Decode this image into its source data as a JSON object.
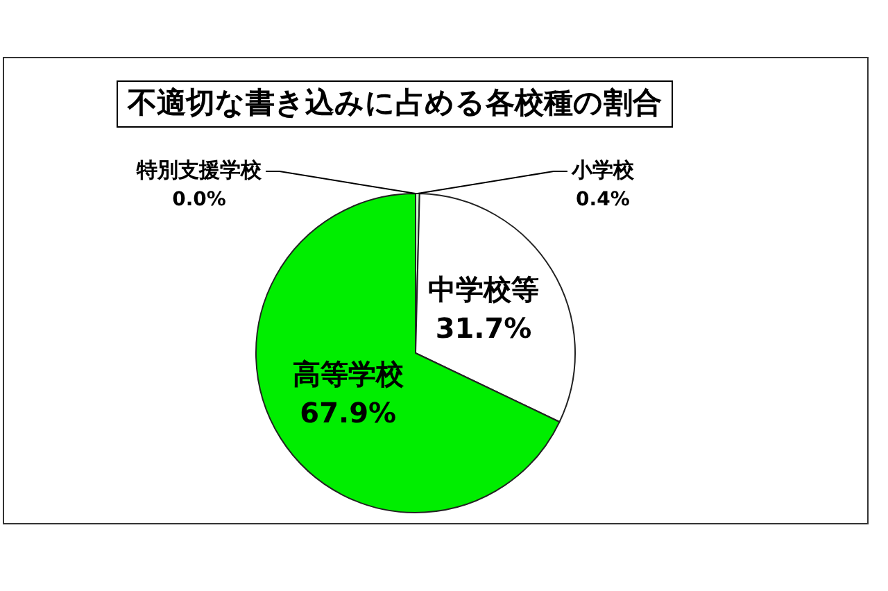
{
  "chart_data": {
    "type": "pie",
    "title": "不適切な書き込みに占める各校種の割合",
    "categories": [
      "小学校",
      "中学校等",
      "高等学校",
      "特別支援学校"
    ],
    "values": [
      0.4,
      31.7,
      67.9,
      0.0
    ],
    "colors": [
      "#ccffcc",
      "#ffffff",
      "#00ee00",
      "#008000"
    ],
    "value_labels": [
      "0.4%",
      "31.7%",
      "67.9%",
      "0.0%"
    ],
    "legend": false
  }
}
